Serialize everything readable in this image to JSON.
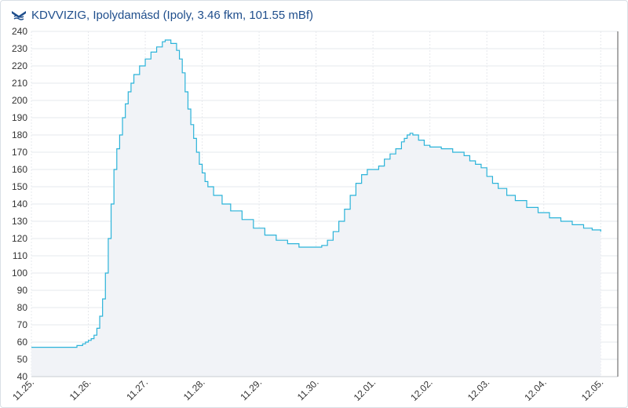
{
  "header": {
    "title": "KDVVIZIG, Ipolydamásd (Ipoly, 3.46 fkm, 101.55 mBf)",
    "logo_icon": "kdvvizig-logo-icon"
  },
  "colors": {
    "line": "#2bb3d9",
    "area_fill": "#f1f3f7",
    "grid": "#e6e8ec",
    "axis_text": "#333333",
    "title": "#1f4e8c",
    "cursor_line": "#555555"
  },
  "chart_data": {
    "type": "area",
    "title": "KDVVIZIG, Ipolydamásd (Ipoly, 3.46 fkm, 101.55 mBf)",
    "xlabel": "",
    "ylabel": "",
    "ylim": [
      40,
      240
    ],
    "yticks": [
      40,
      50,
      60,
      70,
      80,
      90,
      100,
      110,
      120,
      130,
      140,
      150,
      160,
      170,
      180,
      190,
      200,
      210,
      220,
      230,
      240
    ],
    "xlim": [
      0,
      10.3
    ],
    "xticks": [
      {
        "x": 0,
        "label": "11.25."
      },
      {
        "x": 1,
        "label": "11.26."
      },
      {
        "x": 2,
        "label": "11.27."
      },
      {
        "x": 3,
        "label": "11.28."
      },
      {
        "x": 4,
        "label": "11.29."
      },
      {
        "x": 5,
        "label": "11.30."
      },
      {
        "x": 6,
        "label": "12.01."
      },
      {
        "x": 7,
        "label": "12.02."
      },
      {
        "x": 8,
        "label": "12.03."
      },
      {
        "x": 9,
        "label": "12.04."
      },
      {
        "x": 10,
        "label": "12.05."
      }
    ],
    "grid": true,
    "step": true,
    "cursor_x": 10.3,
    "series": [
      {
        "values": [
          [
            0.0,
            57
          ],
          [
            0.7,
            57
          ],
          [
            0.8,
            58
          ],
          [
            0.9,
            59
          ],
          [
            0.95,
            60
          ],
          [
            1.0,
            61
          ],
          [
            1.05,
            62
          ],
          [
            1.1,
            64
          ],
          [
            1.15,
            68
          ],
          [
            1.2,
            75
          ],
          [
            1.25,
            85
          ],
          [
            1.3,
            100
          ],
          [
            1.35,
            120
          ],
          [
            1.4,
            140
          ],
          [
            1.45,
            160
          ],
          [
            1.5,
            172
          ],
          [
            1.55,
            180
          ],
          [
            1.6,
            190
          ],
          [
            1.65,
            198
          ],
          [
            1.7,
            205
          ],
          [
            1.75,
            210
          ],
          [
            1.8,
            215
          ],
          [
            1.9,
            220
          ],
          [
            2.0,
            224
          ],
          [
            2.1,
            228
          ],
          [
            2.2,
            231
          ],
          [
            2.3,
            234
          ],
          [
            2.35,
            235
          ],
          [
            2.45,
            233
          ],
          [
            2.55,
            229
          ],
          [
            2.6,
            224
          ],
          [
            2.65,
            216
          ],
          [
            2.7,
            205
          ],
          [
            2.75,
            195
          ],
          [
            2.8,
            186
          ],
          [
            2.85,
            178
          ],
          [
            2.9,
            170
          ],
          [
            2.95,
            163
          ],
          [
            3.0,
            158
          ],
          [
            3.05,
            153
          ],
          [
            3.1,
            150
          ],
          [
            3.2,
            145
          ],
          [
            3.35,
            140
          ],
          [
            3.5,
            136
          ],
          [
            3.7,
            131
          ],
          [
            3.9,
            126
          ],
          [
            4.1,
            122
          ],
          [
            4.3,
            119
          ],
          [
            4.5,
            117
          ],
          [
            4.7,
            115
          ],
          [
            4.9,
            115
          ],
          [
            5.0,
            115
          ],
          [
            5.1,
            116
          ],
          [
            5.2,
            119
          ],
          [
            5.3,
            124
          ],
          [
            5.4,
            130
          ],
          [
            5.5,
            137
          ],
          [
            5.6,
            145
          ],
          [
            5.7,
            152
          ],
          [
            5.8,
            157
          ],
          [
            5.9,
            160
          ],
          [
            6.0,
            160
          ],
          [
            6.1,
            162
          ],
          [
            6.2,
            166
          ],
          [
            6.3,
            169
          ],
          [
            6.4,
            172
          ],
          [
            6.5,
            176
          ],
          [
            6.55,
            178
          ],
          [
            6.6,
            180
          ],
          [
            6.65,
            181
          ],
          [
            6.7,
            180
          ],
          [
            6.8,
            177
          ],
          [
            6.9,
            174
          ],
          [
            7.0,
            173
          ],
          [
            7.2,
            172
          ],
          [
            7.4,
            170
          ],
          [
            7.6,
            168
          ],
          [
            7.7,
            165
          ],
          [
            7.8,
            163
          ],
          [
            7.9,
            161
          ],
          [
            8.0,
            156
          ],
          [
            8.1,
            152
          ],
          [
            8.2,
            149
          ],
          [
            8.35,
            145
          ],
          [
            8.5,
            142
          ],
          [
            8.7,
            138
          ],
          [
            8.9,
            135
          ],
          [
            9.1,
            132
          ],
          [
            9.3,
            130
          ],
          [
            9.5,
            128
          ],
          [
            9.7,
            126
          ],
          [
            9.85,
            125
          ],
          [
            10.0,
            124
          ]
        ]
      }
    ]
  }
}
